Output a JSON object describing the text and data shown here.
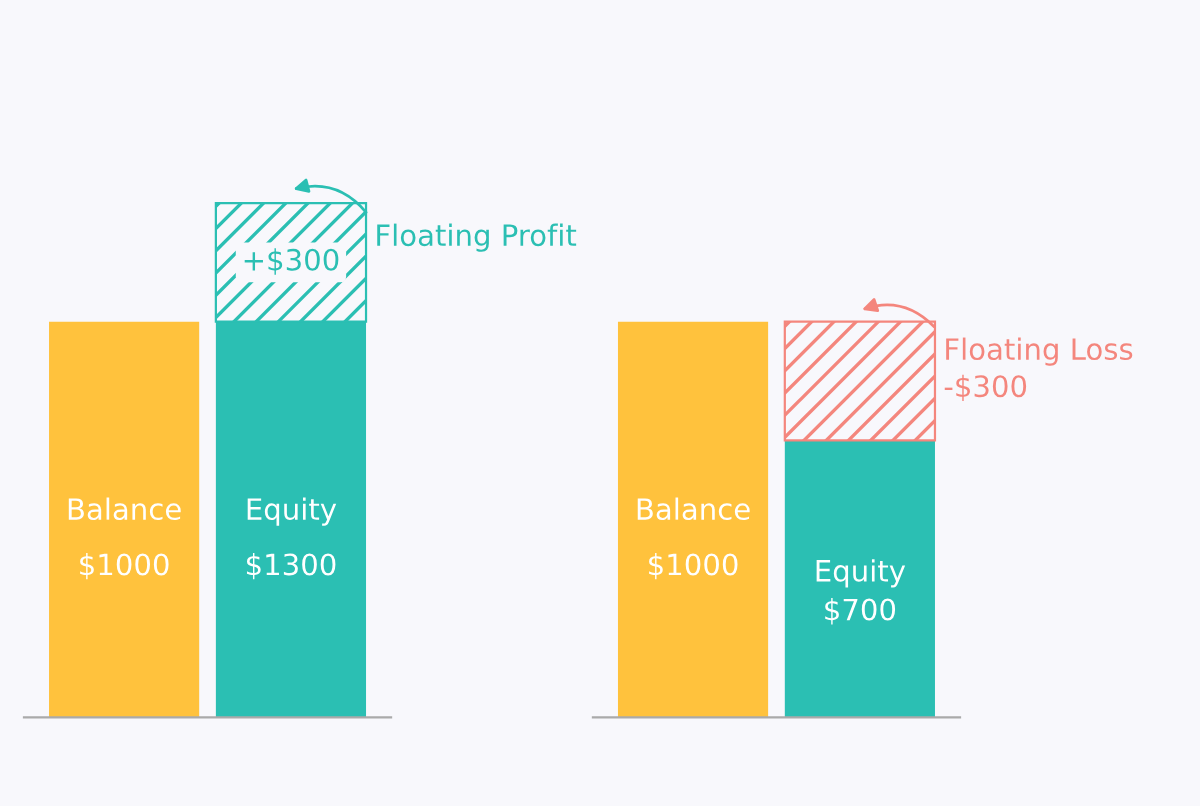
{
  "chart_data": [
    {
      "type": "bar",
      "stacked": true,
      "categories": [
        "Balance",
        "Equity"
      ],
      "series": [
        {
          "colors": [
            "#ffc23d",
            "#2bbfb3"
          ],
          "values": [
            1000,
            1000
          ],
          "value_labels": [
            "$1000",
            null
          ]
        },
        {
          "color": "#2bbfb3",
          "values": [
            null,
            300
          ],
          "value_labels": [
            null,
            "+$300"
          ]
        }
      ],
      "totals": [
        null,
        "$1300"
      ],
      "annotations": [
        "Floating Profit"
      ]
    },
    {
      "type": "bar",
      "stacked": true,
      "categories": [
        "Balance",
        "Equity"
      ],
      "series": [
        {
          "colors": [
            "#ffc23d",
            "#2bbfb3"
          ],
          "values": [
            1000,
            700
          ],
          "value_labels": [
            "$1000",
            "$700"
          ]
        },
        {
          "color": "#f4867d",
          "values": [
            null,
            300
          ]
        }
      ],
      "annotations": [
        "Floating Loss\n-$300"
      ]
    }
  ]
}
